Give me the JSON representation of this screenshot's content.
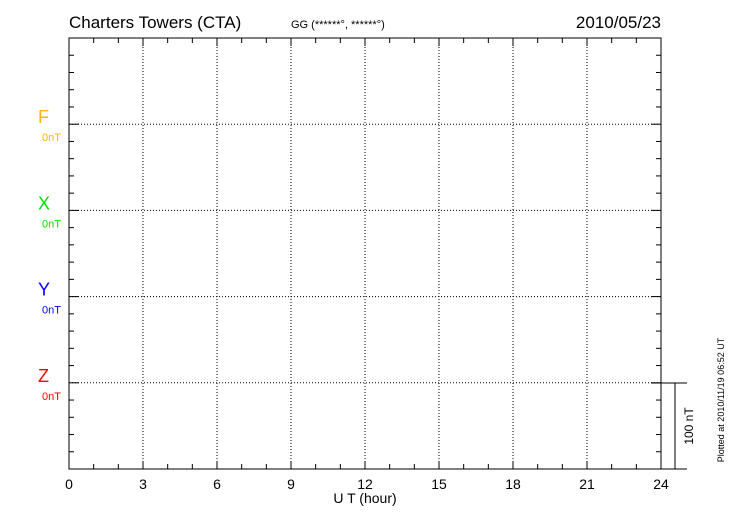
{
  "chart_data": {
    "type": "line",
    "title": "Charters Towers (CTA)",
    "subtitle": "GG (******°, ******°)",
    "date": "2010/05/23",
    "xlabel": "U T (hour)",
    "xlim": [
      0,
      24
    ],
    "x_ticks": [
      "0",
      "3",
      "6",
      "9",
      "12",
      "15",
      "18",
      "21",
      "24"
    ],
    "grid": true,
    "scale_bar": "100 nT",
    "plotted_note": "Plotted at 2010/11/19 06:52 UT",
    "series": [
      {
        "name": "F",
        "baseline": "0nT",
        "color": "#ffb400",
        "values": []
      },
      {
        "name": "X",
        "baseline": "0nT",
        "color": "#00e000",
        "values": []
      },
      {
        "name": "Y",
        "baseline": "0nT",
        "color": "#0000ff",
        "values": []
      },
      {
        "name": "Z",
        "baseline": "0nT",
        "color": "#ff0000",
        "values": []
      }
    ]
  }
}
